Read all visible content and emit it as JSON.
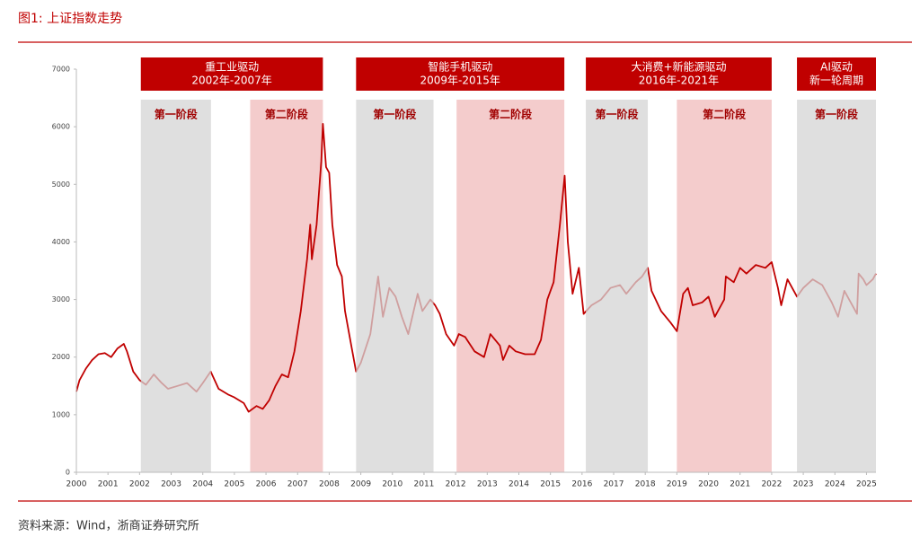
{
  "chart_data": {
    "type": "line",
    "title": "图1:  上证指数走势",
    "source": "资料来源：Wind，浙商证券研究所",
    "xlim": [
      2000,
      2025.3
    ],
    "ylim": [
      0,
      7000
    ],
    "xticks": [
      2000,
      2001,
      2002,
      2003,
      2004,
      2005,
      2006,
      2007,
      2008,
      2009,
      2010,
      2011,
      2012,
      2013,
      2014,
      2015,
      2016,
      2017,
      2018,
      2019,
      2020,
      2021,
      2022,
      2023,
      2024,
      2025
    ],
    "yticks": [
      0,
      1000,
      2000,
      3000,
      4000,
      5000,
      6000,
      7000
    ],
    "drivers": [
      {
        "lines": [
          "重工业驱动",
          "2002年-2007年"
        ],
        "start": 2002.04,
        "end": 2007.8
      },
      {
        "lines": [
          "智能手机驱动",
          "2009年-2015年"
        ],
        "start": 2008.85,
        "end": 2015.44
      },
      {
        "lines": [
          "大消费+新能源驱动",
          "2016年-2021年"
        ],
        "start": 2016.12,
        "end": 2022.0
      },
      {
        "lines": [
          "AI驱动",
          "新一轮周期"
        ],
        "start": 2022.8,
        "end": 2025.3
      }
    ],
    "phases": [
      {
        "label": "第一阶段",
        "start": 2002.04,
        "end": 2004.26,
        "color": "#d4d4d4"
      },
      {
        "label": "第二阶段",
        "start": 2005.5,
        "end": 2007.8,
        "color": "#f4cccc"
      },
      {
        "label": "第一阶段",
        "start": 2008.85,
        "end": 2011.3,
        "color": "#d4d4d4"
      },
      {
        "label": "第二阶段",
        "start": 2012.03,
        "end": 2015.44,
        "color": "#f4cccc"
      },
      {
        "label": "第一阶段",
        "start": 2016.12,
        "end": 2018.08,
        "color": "#d4d4d4"
      },
      {
        "label": "第二阶段",
        "start": 2019.0,
        "end": 2022.0,
        "color": "#f4cccc"
      },
      {
        "label": "第一阶段",
        "start": 2022.8,
        "end": 2025.3,
        "color": "#d4d4d4"
      }
    ],
    "x": [
      2000.0,
      2000.1,
      2000.3,
      2000.5,
      2000.7,
      2000.9,
      2001.1,
      2001.3,
      2001.5,
      2001.6,
      2001.8,
      2002.0,
      2002.2,
      2002.45,
      2002.7,
      2002.9,
      2003.2,
      2003.5,
      2003.8,
      2004.0,
      2004.25,
      2004.5,
      2004.8,
      2005.0,
      2005.3,
      2005.45,
      2005.7,
      2005.9,
      2006.1,
      2006.3,
      2006.5,
      2006.7,
      2006.9,
      2007.1,
      2007.3,
      2007.4,
      2007.45,
      2007.6,
      2007.75,
      2007.8,
      2007.9,
      2008.0,
      2008.1,
      2008.25,
      2008.4,
      2008.5,
      2008.7,
      2008.85,
      2009.0,
      2009.3,
      2009.55,
      2009.7,
      2009.9,
      2010.1,
      2010.3,
      2010.5,
      2010.8,
      2010.95,
      2011.2,
      2011.35,
      2011.5,
      2011.7,
      2011.95,
      2012.1,
      2012.3,
      2012.6,
      2012.9,
      2013.1,
      2013.4,
      2013.5,
      2013.7,
      2013.9,
      2014.2,
      2014.5,
      2014.7,
      2014.9,
      2015.1,
      2015.3,
      2015.45,
      2015.55,
      2015.6,
      2015.7,
      2015.9,
      2016.05,
      2016.3,
      2016.6,
      2016.9,
      2017.2,
      2017.4,
      2017.7,
      2017.9,
      2018.08,
      2018.2,
      2018.5,
      2018.8,
      2019.0,
      2019.2,
      2019.35,
      2019.5,
      2019.8,
      2020.0,
      2020.2,
      2020.5,
      2020.55,
      2020.8,
      2021.0,
      2021.2,
      2021.5,
      2021.8,
      2022.0,
      2022.2,
      2022.3,
      2022.5,
      2022.8,
      2023.0,
      2023.3,
      2023.6,
      2023.9,
      2024.1,
      2024.3,
      2024.5,
      2024.7,
      2024.75,
      2024.9,
      2025.0,
      2025.2,
      2025.3
    ],
    "series": [
      {
        "color": "#c00000",
        "values": [
          1400,
          1600,
          1800,
          1950,
          2050,
          2070,
          2000,
          2150,
          2230,
          2100,
          1750,
          1600,
          1520,
          1700,
          1550,
          1450,
          1500,
          1550,
          1400,
          1550,
          1750,
          1450,
          1350,
          1300,
          1200,
          1050,
          1150,
          1100,
          1250,
          1500,
          1700,
          1650,
          2100,
          2800,
          3700,
          4300,
          3700,
          4300,
          5400,
          6050,
          5300,
          5200,
          4300,
          3600,
          3400,
          2800,
          2200,
          1750,
          1900,
          2400,
          3400,
          2700,
          3200,
          3050,
          2700,
          2400,
          3100,
          2800,
          3000,
          2900,
          2750,
          2400,
          2200,
          2400,
          2350,
          2100,
          2000,
          2400,
          2200,
          1950,
          2200,
          2100,
          2050,
          2050,
          2300,
          3000,
          3300,
          4300,
          5150,
          4000,
          3700,
          3100,
          3550,
          2750,
          2900,
          3000,
          3200,
          3250,
          3100,
          3300,
          3400,
          3550,
          3150,
          2800,
          2600,
          2450,
          3100,
          3200,
          2900,
          2950,
          3050,
          2700,
          3000,
          3400,
          3300,
          3550,
          3450,
          3600,
          3550,
          3650,
          3200,
          2900,
          3350,
          3050,
          3200,
          3350,
          3250,
          2950,
          2700,
          3150,
          2950,
          2750,
          3450,
          3350,
          3250,
          3350,
          3450
        ]
      }
    ]
  }
}
